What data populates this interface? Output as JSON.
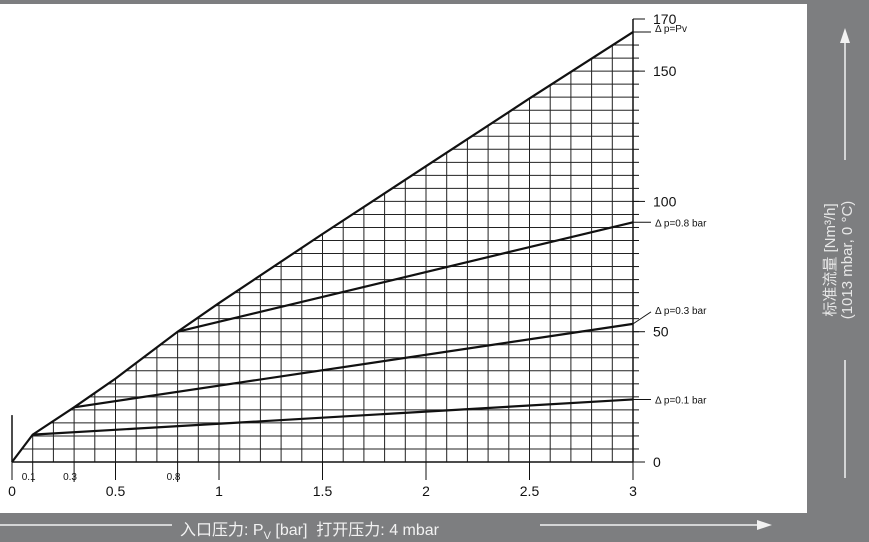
{
  "chart_data": {
    "type": "line",
    "title": "",
    "xlabel": {
      "cn_inlet": "入口压力",
      "pv": "P",
      "pv_sub": "V",
      "unit": "[bar]",
      "cn_open": "打开压力",
      "open_value": "4 mbar"
    },
    "ylabel": {
      "line1": "标准流量 [Nm³/h]",
      "line2": "(1013 mbar, 0 °C)"
    },
    "xlim": [
      0,
      3
    ],
    "ylim": [
      0,
      170
    ],
    "grid": true,
    "x_ticks_major": [
      "0",
      "0.5",
      "1",
      "1.5",
      "2",
      "2.5",
      "3"
    ],
    "x_ticks_minor": [
      "0.1",
      "0.3",
      "0.8"
    ],
    "y_ticks": [
      "0",
      "50",
      "100",
      "150",
      "170"
    ],
    "series": [
      {
        "name": "Δ p=Pv",
        "x": [
          0,
          0.1,
          0.3,
          0.5,
          0.8,
          1.0,
          1.5,
          2.0,
          2.5,
          3.0
        ],
        "values": [
          0,
          10.5,
          21,
          32,
          50,
          61,
          87.5,
          113.5,
          139.5,
          165
        ]
      },
      {
        "name": "Δ p=0.8 bar",
        "x": [
          0.8,
          3.0
        ],
        "values": [
          50,
          92
        ]
      },
      {
        "name": "Δ p=0.3 bar",
        "x": [
          0.3,
          3.0
        ],
        "values": [
          21,
          53
        ]
      },
      {
        "name": "Δ p=0.1 bar",
        "x": [
          0.1,
          3.0
        ],
        "values": [
          10.5,
          24
        ]
      }
    ]
  }
}
